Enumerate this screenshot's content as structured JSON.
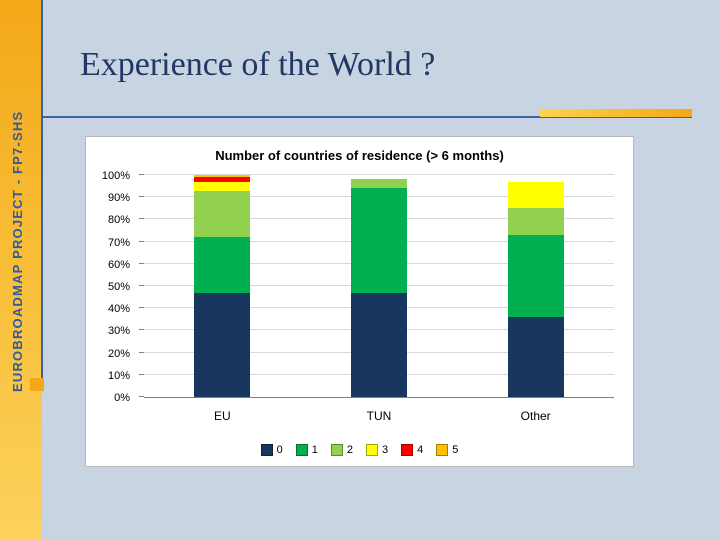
{
  "sidebar": {
    "label": "EUROBROADMAP PROJECT - FP7-SHS"
  },
  "title": "Experience of the World ?",
  "accent_colors": {
    "strip_orange": "#f3a818",
    "line_blue": "#3a62a7",
    "title_navy": "#1f3864"
  },
  "chart_data": {
    "type": "bar",
    "stacked": true,
    "title": "Number of countries of residence (> 6 months)",
    "categories": [
      "EU",
      "TUN",
      "Other"
    ],
    "series": [
      {
        "name": "0",
        "color": "#17375e",
        "values": [
          47,
          47,
          36
        ]
      },
      {
        "name": "1",
        "color": "#00b050",
        "values": [
          25,
          47,
          37
        ]
      },
      {
        "name": "2",
        "color": "#92d050",
        "values": [
          21,
          4,
          12
        ]
      },
      {
        "name": "3",
        "color": "#ffff00",
        "values": [
          4,
          0,
          12
        ]
      },
      {
        "name": "4",
        "color": "#ff0000",
        "values": [
          2,
          0,
          0
        ]
      },
      {
        "name": "5",
        "color": "#ffc000",
        "values": [
          1,
          0,
          0
        ]
      }
    ],
    "ylim": [
      0,
      100
    ],
    "ytick_step": 10,
    "ytick_suffix": "%",
    "grid": true,
    "legend_position": "bottom"
  }
}
